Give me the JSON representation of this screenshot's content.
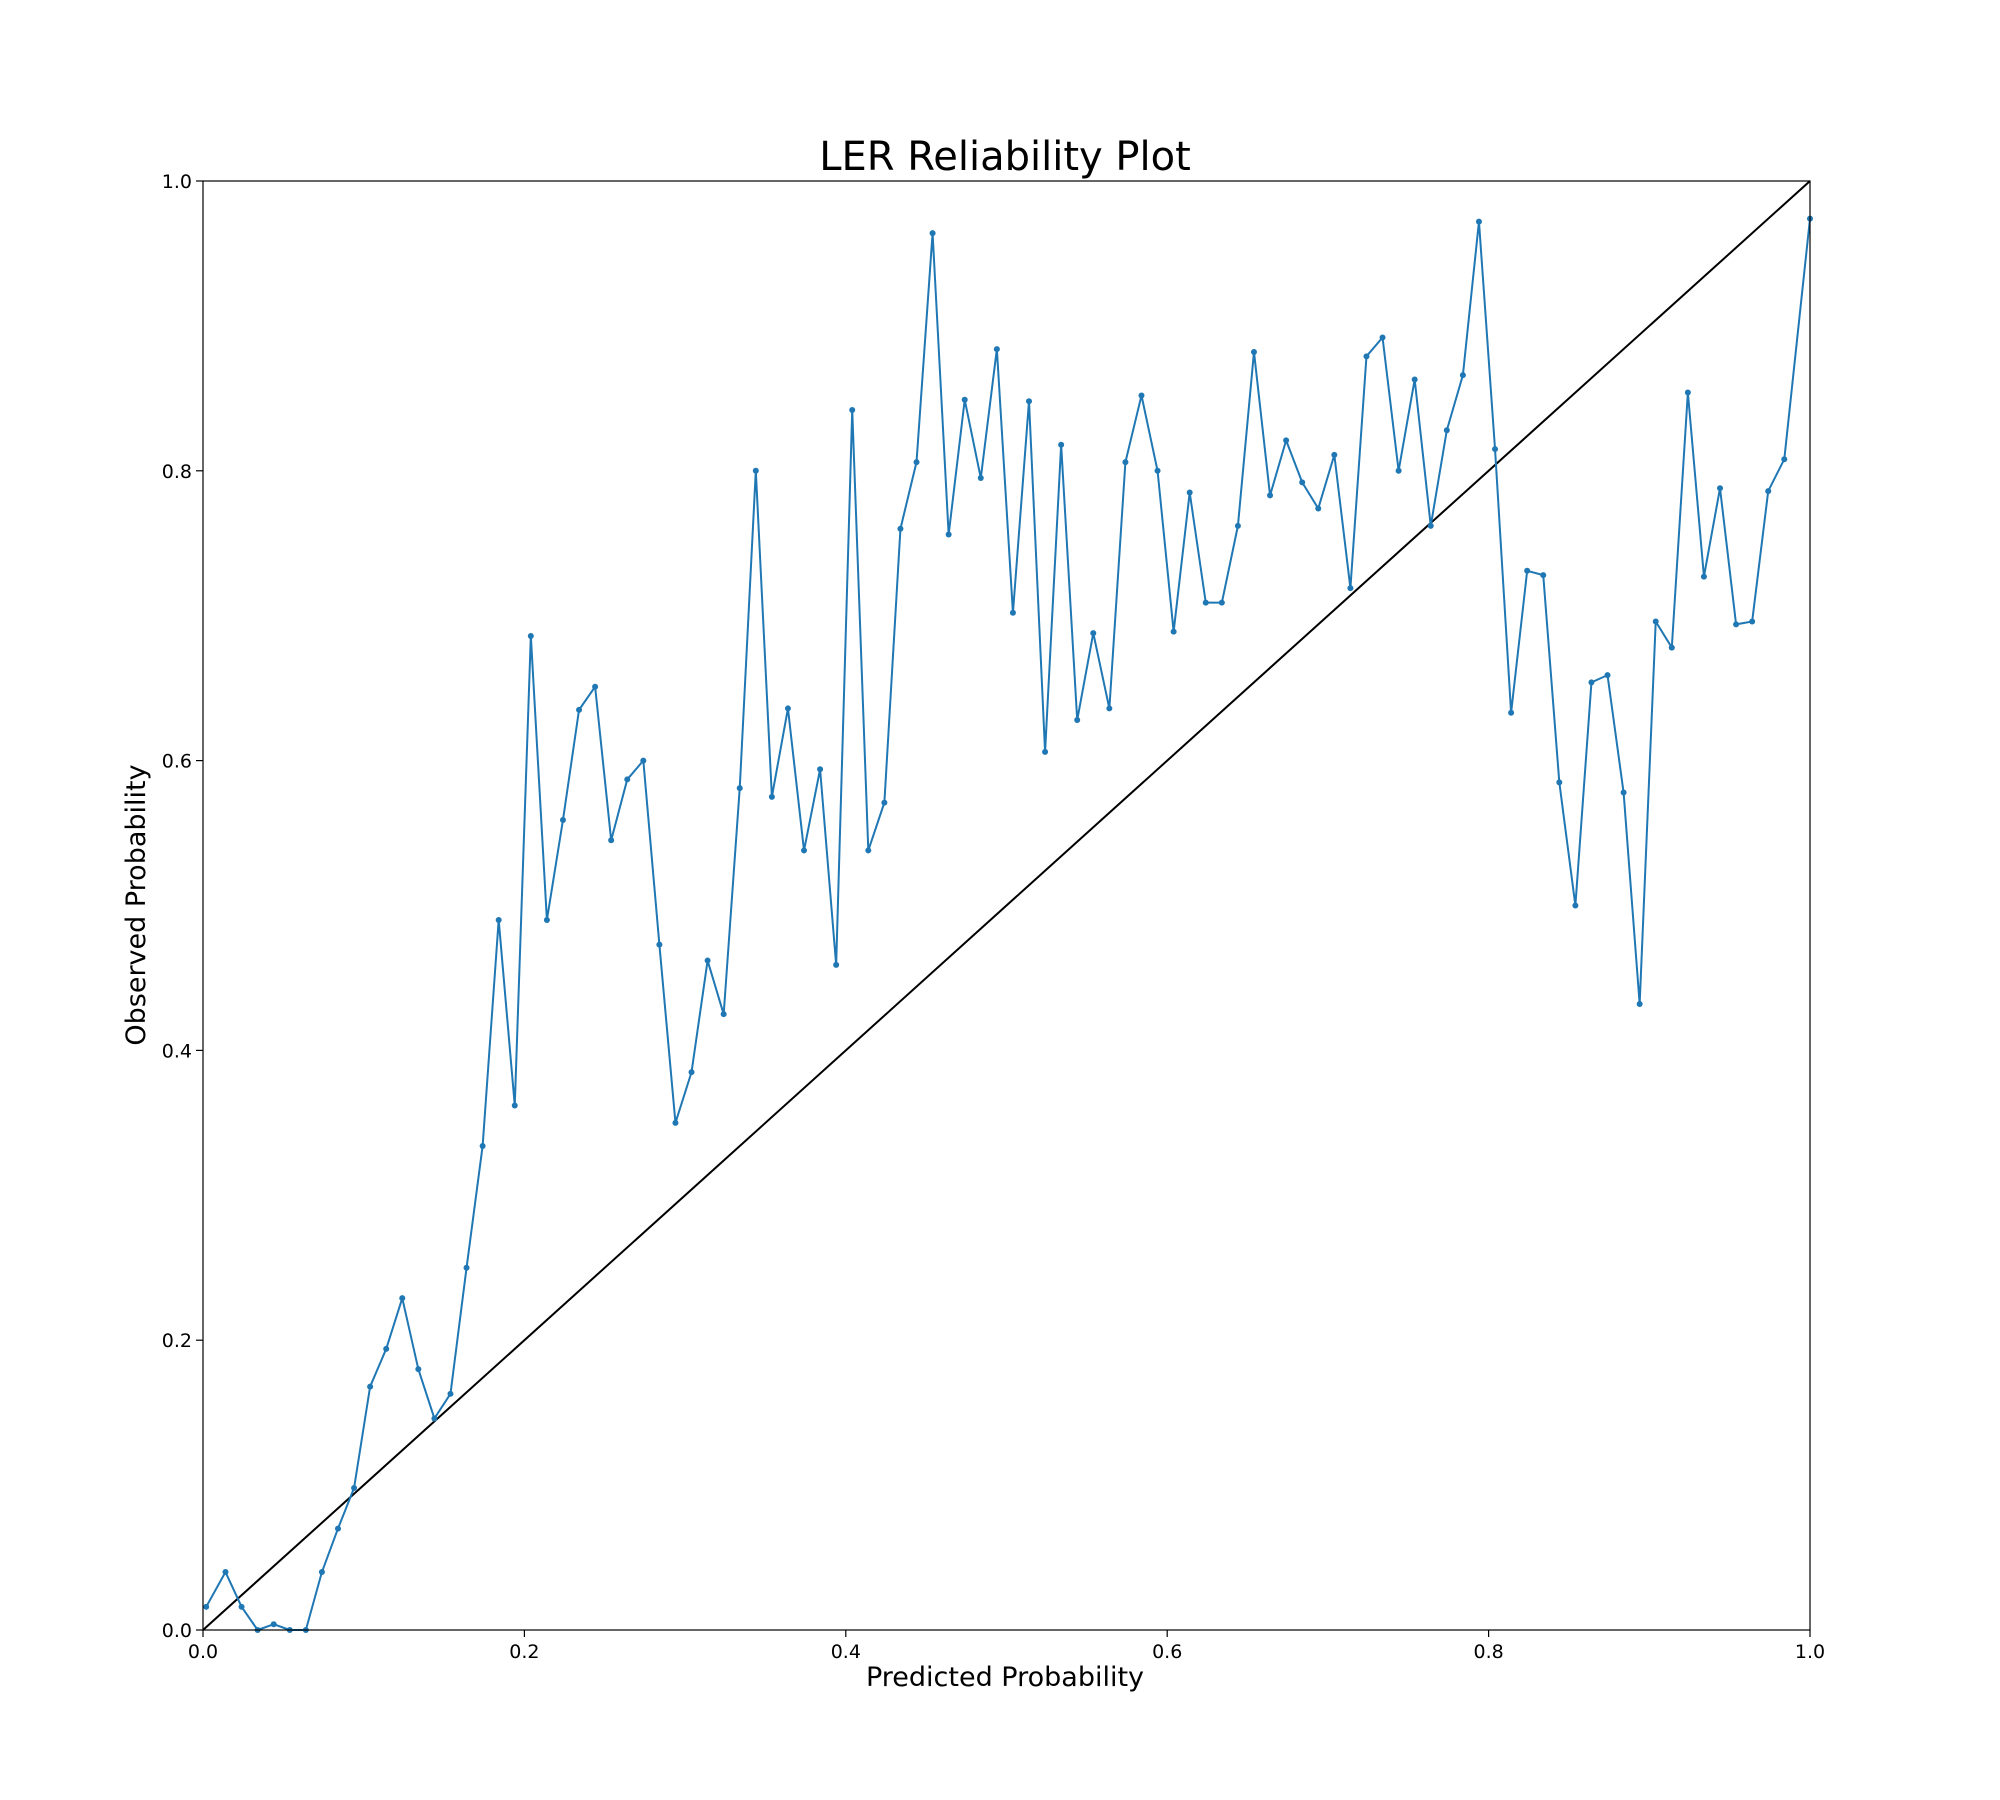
{
  "chart_data": {
    "type": "line",
    "title": "LER Reliability Plot",
    "xlabel": "Predicted Probability",
    "ylabel": "Observed Probability",
    "xlim": [
      0.0,
      1.0
    ],
    "ylim": [
      0.0,
      1.0
    ],
    "grid": false,
    "legend": "none",
    "x_ticks": [
      "0.0",
      "0.2",
      "0.4",
      "0.6",
      "0.8",
      "1.0"
    ],
    "y_ticks": [
      "0.0",
      "0.2",
      "0.4",
      "0.6",
      "0.8",
      "1.0"
    ],
    "reference_line": {
      "x": [
        0.0,
        1.0
      ],
      "y": [
        0.0,
        1.0
      ],
      "color": "#000000"
    },
    "series": [
      {
        "color": "#1f77b4",
        "x": [
          0.002,
          0.014,
          0.024,
          0.034,
          0.044,
          0.054,
          0.064,
          0.074,
          0.084,
          0.094,
          0.104,
          0.114,
          0.124,
          0.134,
          0.144,
          0.154,
          0.164,
          0.174,
          0.184,
          0.194,
          0.204,
          0.214,
          0.224,
          0.234,
          0.244,
          0.254,
          0.264,
          0.274,
          0.284,
          0.294,
          0.304,
          0.314,
          0.324,
          0.334,
          0.344,
          0.354,
          0.364,
          0.374,
          0.384,
          0.394,
          0.404,
          0.414,
          0.424,
          0.434,
          0.444,
          0.454,
          0.464,
          0.474,
          0.484,
          0.494,
          0.504,
          0.514,
          0.524,
          0.534,
          0.544,
          0.554,
          0.564,
          0.574,
          0.584,
          0.594,
          0.604,
          0.614,
          0.624,
          0.634,
          0.644,
          0.654,
          0.664,
          0.674,
          0.684,
          0.694,
          0.704,
          0.714,
          0.724,
          0.734,
          0.744,
          0.754,
          0.764,
          0.774,
          0.784,
          0.794,
          0.804,
          0.814,
          0.824,
          0.834,
          0.844,
          0.854,
          0.864,
          0.874,
          0.884,
          0.894,
          0.904,
          0.914,
          0.924,
          0.934,
          0.944,
          0.954,
          0.964,
          0.974,
          0.984,
          1.0
        ],
        "y": [
          0.016,
          0.04,
          0.016,
          0.0,
          0.004,
          0.0,
          0.0,
          0.04,
          0.07,
          0.098,
          0.168,
          0.194,
          0.229,
          0.18,
          0.146,
          0.163,
          0.25,
          0.334,
          0.49,
          0.362,
          0.686,
          0.49,
          0.559,
          0.635,
          0.651,
          0.545,
          0.587,
          0.6,
          0.473,
          0.35,
          0.385,
          0.462,
          0.425,
          0.581,
          0.8,
          0.575,
          0.636,
          0.538,
          0.594,
          0.459,
          0.842,
          0.538,
          0.571,
          0.76,
          0.806,
          0.964,
          0.756,
          0.849,
          0.795,
          0.884,
          0.702,
          0.848,
          0.606,
          0.818,
          0.628,
          0.688,
          0.636,
          0.806,
          0.852,
          0.8,
          0.689,
          0.785,
          0.709,
          0.709,
          0.762,
          0.882,
          0.783,
          0.821,
          0.792,
          0.774,
          0.811,
          0.719,
          0.879,
          0.892,
          0.8,
          0.863,
          0.762,
          0.828,
          0.866,
          0.972,
          0.815,
          0.633,
          0.731,
          0.728,
          0.585,
          0.5,
          0.654,
          0.659,
          0.578,
          0.432,
          0.696,
          0.678,
          0.854,
          0.727,
          0.788,
          0.694,
          0.696,
          0.786,
          0.808,
          0.974
        ]
      }
    ]
  }
}
